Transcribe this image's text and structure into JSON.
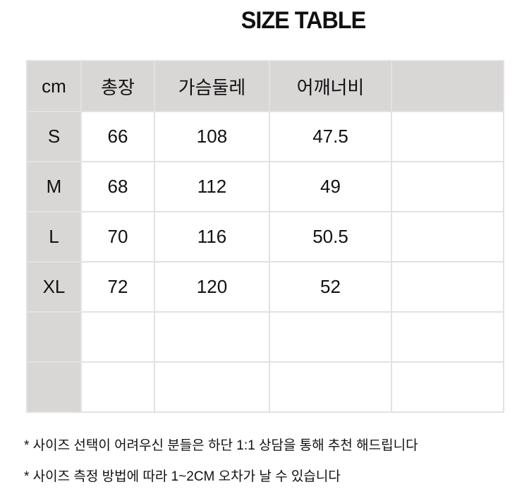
{
  "title": "SIZE TABLE",
  "colors": {
    "header_bg": "#d9d6d6",
    "border": "#e2e2e2"
  },
  "table": {
    "headers": [
      "cm",
      "총장",
      "가슴둘레",
      "어깨너비",
      ""
    ],
    "rows": [
      [
        "S",
        "66",
        "108",
        "47.5",
        ""
      ],
      [
        "M",
        "68",
        "112",
        "49",
        ""
      ],
      [
        "L",
        "70",
        "116",
        "50.5",
        ""
      ],
      [
        "XL",
        "72",
        "120",
        "52",
        ""
      ],
      [
        "",
        "",
        "",
        "",
        ""
      ],
      [
        "",
        "",
        "",
        "",
        ""
      ]
    ]
  },
  "notes": [
    "* 사이즈 선택이 어려우신 분들은 하단 1:1 상담을 통해 추천 해드립니다",
    "* 사이즈 측정 방법에 따라 1~2CM 오차가 날 수 있습니다"
  ]
}
